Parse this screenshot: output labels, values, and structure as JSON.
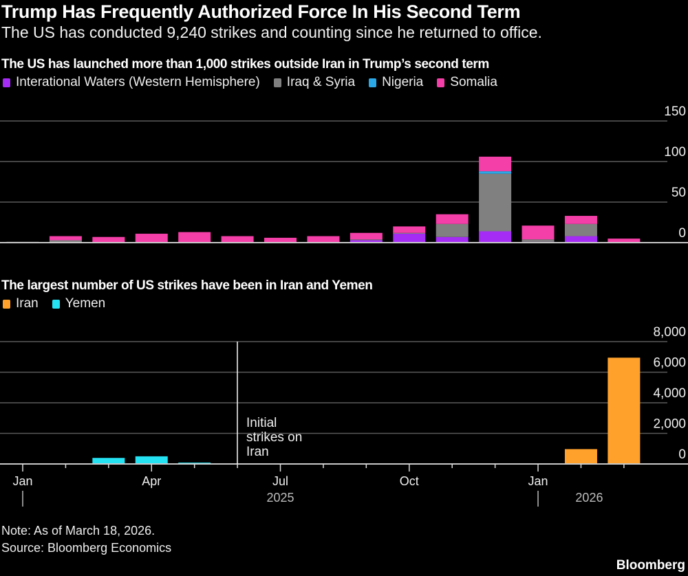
{
  "header": {
    "title": "Trump Has Frequently Authorized Force In His Second Term",
    "subtitle": "The US has conducted 9,240 strikes and counting since he returned to office."
  },
  "chart_data": [
    {
      "type": "bar",
      "stacked": true,
      "title": "The US has launched more than 1,000 strikes outside Iran in Trump’s second term",
      "legend_placement": "top-left",
      "grid": true,
      "ylim": [
        0,
        150
      ],
      "yticks": [
        "0",
        "50",
        "100",
        "150"
      ],
      "categories": [
        "Jan 2025",
        "Feb 2025",
        "Mar 2025",
        "Apr 2025",
        "May 2025",
        "Jun 2025",
        "Jul 2025",
        "Aug 2025",
        "Sep 2025",
        "Oct 2025",
        "Nov 2025",
        "Dec 2025",
        "Jan 2026",
        "Feb 2026",
        "Mar 2026"
      ],
      "series": [
        {
          "name": "Interational Waters (Western Hemisphere)",
          "color": "#a52cf5",
          "values": [
            0,
            0,
            0,
            0,
            0,
            0,
            0,
            0,
            3,
            11,
            7,
            14,
            1,
            8,
            0
          ]
        },
        {
          "name": "Iraq & Syria",
          "color": "#808080",
          "values": [
            1,
            3,
            0,
            0,
            0,
            0,
            0,
            0,
            1,
            1,
            16,
            71,
            3,
            15,
            0
          ]
        },
        {
          "name": "Nigeria",
          "color": "#2aa8e8",
          "values": [
            0,
            0,
            0,
            0,
            0,
            0,
            0,
            0,
            0,
            0,
            0,
            3,
            0,
            0,
            0
          ]
        },
        {
          "name": "Somalia",
          "color": "#f43ea8",
          "values": [
            0,
            5,
            7,
            11,
            13,
            8,
            6,
            8,
            8,
            8,
            12,
            18,
            17,
            10,
            5
          ]
        }
      ]
    },
    {
      "type": "bar",
      "stacked": true,
      "title": "The largest number of US strikes have been in Iran and Yemen",
      "legend_placement": "top-left",
      "grid": true,
      "ylim": [
        0,
        8000
      ],
      "yticks": [
        "0",
        "2,000",
        "4,000",
        "6,000",
        "8,000"
      ],
      "categories": [
        "Jan 2025",
        "Feb 2025",
        "Mar 2025",
        "Apr 2025",
        "May 2025",
        "Jun 2025",
        "Jul 2025",
        "Aug 2025",
        "Sep 2025",
        "Oct 2025",
        "Nov 2025",
        "Dec 2025",
        "Jan 2026",
        "Feb 2026",
        "Mar 2026"
      ],
      "series": [
        {
          "name": "Iran",
          "color": "#ffa12b",
          "values": [
            0,
            0,
            0,
            0,
            0,
            0,
            0,
            0,
            0,
            0,
            0,
            0,
            0,
            970,
            6950
          ]
        },
        {
          "name": "Yemen",
          "color": "#25e2f3",
          "values": [
            0,
            0,
            395,
            500,
            90,
            0,
            0,
            0,
            0,
            0,
            0,
            0,
            0,
            0,
            0
          ]
        }
      ],
      "xtick_labels": [
        {
          "label": "Jan",
          "month": 0
        },
        {
          "label": "Apr",
          "month": 3
        },
        {
          "label": "Jul",
          "month": 6
        },
        {
          "label": "Oct",
          "month": 9
        },
        {
          "label": "Jan",
          "month": 12
        }
      ],
      "year_labels": [
        {
          "label": "2025",
          "month": 6
        },
        {
          "label": "2026",
          "month": 13
        }
      ],
      "annotation": {
        "text": [
          "Initial",
          "strikes on",
          "Iran"
        ],
        "month": 5
      }
    }
  ],
  "footer": {
    "note": "Note: As of March 18, 2026.",
    "source": "Source: Bloomberg Economics",
    "brand": "Bloomberg"
  }
}
